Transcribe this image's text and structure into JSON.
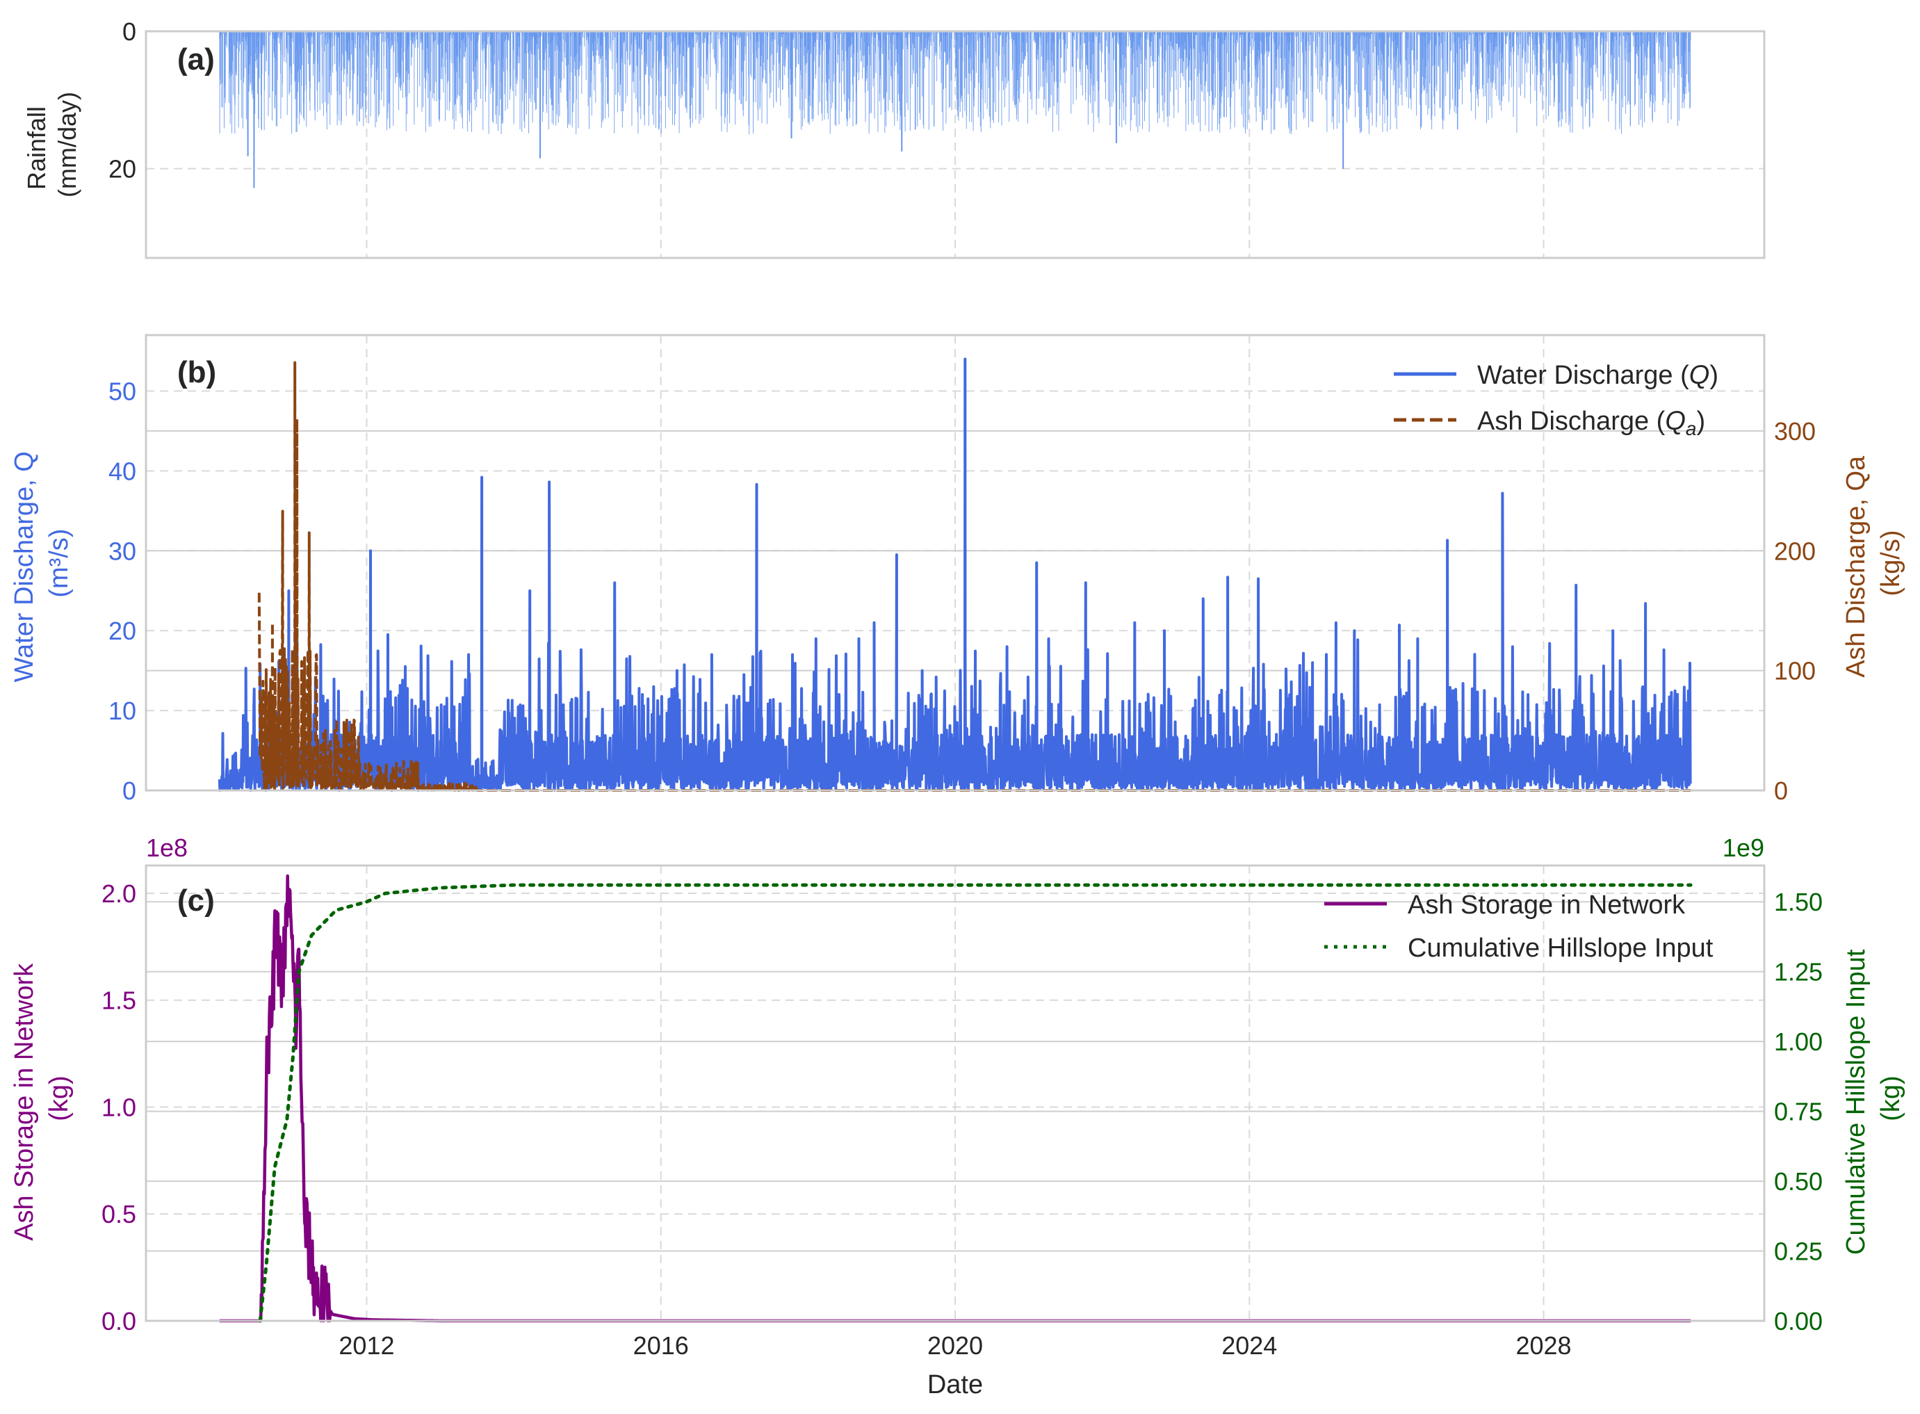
{
  "chart_data": [
    {
      "panel_label": "(a)",
      "type": "bar",
      "series": [
        {
          "name": "Rainfall",
          "color": "#6495ED"
        }
      ],
      "ylabel_lines": [
        "Rainfall",
        "(mm/day)"
      ],
      "y_inverted": true,
      "ylim": [
        0,
        33
      ],
      "yticks": [
        0,
        20
      ],
      "ytick_labels": [
        "0",
        "20"
      ],
      "x_range": [
        "2010-01-01",
        "2030-01-01"
      ],
      "data_notes": {
        "daily_bars_from": "2010-01-01",
        "daily_bars_to": "2029-12-31",
        "typical_max_mm_day": 15,
        "peaks": [
          {
            "date": "2010-06-20",
            "value": 22.8
          },
          {
            "date": "2010-05-20",
            "value": 18.2
          },
          {
            "date": "2014-05-10",
            "value": 18.5
          },
          {
            "date": "2019-04-10",
            "value": 17.5
          },
          {
            "date": "2025-04-10",
            "value": 20.0
          },
          {
            "date": "2017-10-10",
            "value": 15.6
          },
          {
            "date": "2022-03-10",
            "value": 16.3
          }
        ]
      },
      "grid": true
    },
    {
      "panel_label": "(b)",
      "type": "line",
      "ylabel_left_lines": [
        "Water Discharge, Q",
        "(m³/s)"
      ],
      "ylabel_right_lines": [
        "Ash Discharge, Qa",
        "(kg/s)"
      ],
      "ylim_left": [
        0,
        57
      ],
      "yticks_left": [
        0,
        10,
        20,
        30,
        40,
        50
      ],
      "ylim_right": [
        0,
        380
      ],
      "yticks_right": [
        0,
        100,
        200,
        300
      ],
      "legend_position": "top-right",
      "grid": true,
      "series": [
        {
          "name": "Water Discharge (Q)",
          "legend_main": "Water Discharge (",
          "legend_sym": "Q",
          "legend_sub": "",
          "legend_end": ")",
          "axis": "left",
          "color": "#4169E1",
          "style": "solid",
          "peaks": [
            [
              "2010-05-10",
              15.3
            ],
            [
              "2010-07-20",
              15.8
            ],
            [
              "2010-12-10",
              25.0
            ],
            [
              "2011-01-20",
              20.0
            ],
            [
              "2012-01-20",
              30.0
            ],
            [
              "2012-04-15",
              19.5
            ],
            [
              "2012-07-10",
              15.5
            ],
            [
              "2013-05-20",
              17.0
            ],
            [
              "2013-07-25",
              39.2
            ],
            [
              "2014-03-20",
              25.0
            ],
            [
              "2014-06-25",
              38.6
            ],
            [
              "2014-10-10",
              11.0
            ],
            [
              "2015-05-15",
              26.0
            ],
            [
              "2016-03-20",
              15.0
            ],
            [
              "2016-09-10",
              17.0
            ],
            [
              "2017-04-20",
              38.3
            ],
            [
              "2017-10-15",
              17.0
            ],
            [
              "2018-02-10",
              19.0
            ],
            [
              "2018-09-10",
              19.0
            ],
            [
              "2018-11-25",
              21.0
            ],
            [
              "2019-03-15",
              29.5
            ],
            [
              "2019-07-20",
              15.0
            ],
            [
              "2020-02-20",
              54.0
            ],
            [
              "2020-09-15",
              18.0
            ],
            [
              "2021-02-10",
              28.5
            ],
            [
              "2021-10-10",
              26.0
            ],
            [
              "2022-06-10",
              21.0
            ],
            [
              "2022-11-05",
              20.0
            ],
            [
              "2023-05-15",
              24.0
            ],
            [
              "2023-09-15",
              26.7
            ],
            [
              "2024-02-15",
              26.5
            ],
            [
              "2024-11-10",
              16.0
            ],
            [
              "2025-03-05",
              21.0
            ],
            [
              "2025-06-05",
              20.0
            ],
            [
              "2026-01-15",
              20.7
            ],
            [
              "2026-04-15",
              19.0
            ],
            [
              "2026-09-10",
              31.3
            ],
            [
              "2027-06-10",
              37.2
            ],
            [
              "2027-10-15",
              12.0
            ],
            [
              "2028-01-15",
              11.0
            ],
            [
              "2028-06-10",
              25.7
            ],
            [
              "2028-12-10",
              20.0
            ],
            [
              "2029-05-20",
              23.4
            ],
            [
              "2029-08-20",
              17.6
            ],
            [
              "2029-12-05",
              11.0
            ]
          ]
        },
        {
          "name": "Ash Discharge (Qa)",
          "legend_main": "Ash Discharge (",
          "legend_sym": "Q",
          "legend_sub": "a",
          "legend_end": ")",
          "axis": "right",
          "color": "#8B4513",
          "style": "dashed",
          "peaks": [
            [
              "2010-07-15",
              165
            ],
            [
              "2010-09-20",
              140
            ],
            [
              "2010-11-10",
              233
            ],
            [
              "2011-01-10",
              357
            ],
            [
              "2011-01-20",
              310
            ],
            [
              "2011-03-20",
              215
            ],
            [
              "2011-06-10",
              50
            ],
            [
              "2011-11-20",
              42
            ],
            [
              "2012-05-10",
              20
            ],
            [
              "2012-09-15",
              8
            ],
            [
              "2013-04-10",
              5
            ]
          ]
        }
      ]
    },
    {
      "panel_label": "(c)",
      "type": "line",
      "xlabel": "Date",
      "ylabel_left_lines": [
        "Ash Storage in Network",
        "(kg)"
      ],
      "ylabel_right_lines": [
        "Cumulative Hillslope Input",
        "(kg)"
      ],
      "offset_left": "1e8",
      "offset_right": "1e9",
      "ylim_left": [
        0,
        2.13
      ],
      "yticks_left": [
        0.0,
        0.5,
        1.0,
        1.5,
        2.0
      ],
      "ytick_labels_left": [
        "0.0",
        "0.5",
        "1.0",
        "1.5",
        "2.0"
      ],
      "ylim_right": [
        0,
        1.63
      ],
      "yticks_right": [
        0.0,
        0.25,
        0.5,
        0.75,
        1.0,
        1.25,
        1.5
      ],
      "ytick_labels_right": [
        "0.00",
        "0.25",
        "0.50",
        "0.75",
        "1.00",
        "1.25",
        "1.50"
      ],
      "legend_position": "top-right",
      "grid": true,
      "series": [
        {
          "name": "Ash Storage in Network",
          "axis": "left",
          "color": "#800080",
          "style": "solid",
          "points": [
            [
              "2010-01-01",
              0.0
            ],
            [
              "2010-07-20",
              0.0
            ],
            [
              "2010-08-01",
              0.35
            ],
            [
              "2010-08-20",
              1.12
            ],
            [
              "2010-09-20",
              1.5
            ],
            [
              "2010-10-05",
              1.82
            ],
            [
              "2010-11-10",
              1.6
            ],
            [
              "2010-12-10",
              2.02
            ],
            [
              "2011-01-15",
              1.4
            ],
            [
              "2011-01-30",
              1.7
            ],
            [
              "2011-02-25",
              0.5
            ],
            [
              "2011-04-20",
              0.15
            ],
            [
              "2011-07-15",
              0.03
            ],
            [
              "2011-11-01",
              0.01
            ],
            [
              "2012-02-01",
              0.005
            ],
            [
              "2013-01-01",
              0.0
            ],
            [
              "2030-01-01",
              0.0
            ]
          ]
        },
        {
          "name": "Cumulative Hillslope Input",
          "axis": "right",
          "color": "#006400",
          "style": "dotted",
          "points": [
            [
              "2010-07-20",
              0.0
            ],
            [
              "2010-08-20",
              0.2
            ],
            [
              "2010-10-01",
              0.55
            ],
            [
              "2010-12-01",
              0.72
            ],
            [
              "2011-01-01",
              0.95
            ],
            [
              "2011-01-30",
              1.25
            ],
            [
              "2011-04-01",
              1.38
            ],
            [
              "2011-08-01",
              1.47
            ],
            [
              "2012-01-01",
              1.5
            ],
            [
              "2012-04-01",
              1.53
            ],
            [
              "2013-01-01",
              1.55
            ],
            [
              "2014-01-01",
              1.56
            ],
            [
              "2029-12-31",
              1.56
            ]
          ]
        }
      ],
      "xticks": [
        "2012-01-01",
        "2016-01-01",
        "2020-01-01",
        "2024-01-01",
        "2028-01-01"
      ],
      "xtick_labels": [
        "2012",
        "2016",
        "2020",
        "2024",
        "2028"
      ],
      "x_range": [
        "2009-01-01",
        "2031-01-01"
      ]
    }
  ],
  "colors": {
    "axis_frame": "#cccccc",
    "grid": "#d9d9d9",
    "text": "#262626",
    "rainfall": "#6495ED",
    "water": "#4169E1",
    "ash": "#8B4513",
    "storage": "#800080",
    "cumulative": "#006400"
  }
}
